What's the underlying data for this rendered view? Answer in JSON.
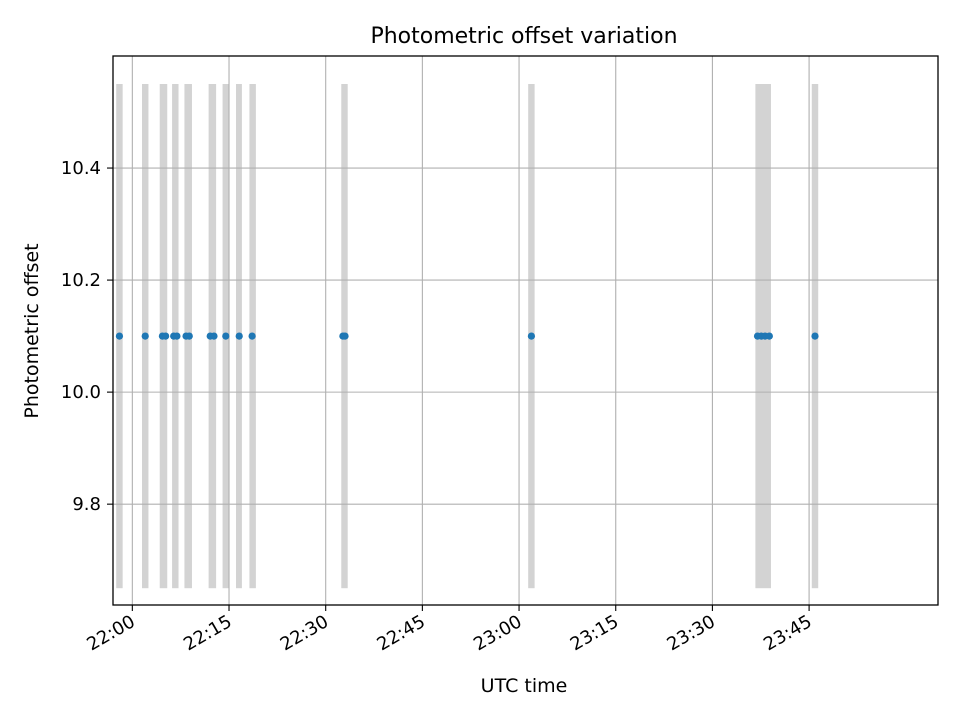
{
  "chart_data": {
    "type": "scatter",
    "title": "Photometric offset variation",
    "xlabel": "UTC time",
    "ylabel": "Photometric offset",
    "xlim": [
      "21:57",
      "24:05"
    ],
    "ylim": [
      9.62,
      10.6
    ],
    "grid": true,
    "x_tick_labels": [
      "22:00",
      "22:15",
      "22:30",
      "22:45",
      "23:00",
      "23:15",
      "23:30",
      "23:45"
    ],
    "y_tick_labels": [
      "9.8",
      "10.0",
      "10.2",
      "10.4"
    ],
    "y_ticks": [
      9.8,
      10.0,
      10.2,
      10.4
    ],
    "exposure_band_range": [
      9.65,
      10.55
    ],
    "exposure_bands": [
      {
        "start": "21:57:30",
        "end": "21:58:30"
      },
      {
        "start": "22:01:30",
        "end": "22:02:30"
      },
      {
        "start": "22:04:15",
        "end": "22:05:25"
      },
      {
        "start": "22:06:10",
        "end": "22:07:10"
      },
      {
        "start": "22:08:05",
        "end": "22:09:15"
      },
      {
        "start": "22:11:50",
        "end": "22:13:00"
      },
      {
        "start": "22:14:00",
        "end": "22:15:00"
      },
      {
        "start": "22:16:05",
        "end": "22:17:00"
      },
      {
        "start": "22:18:10",
        "end": "22:19:10"
      },
      {
        "start": "22:32:25",
        "end": "22:33:25"
      },
      {
        "start": "23:01:25",
        "end": "23:02:25"
      },
      {
        "start": "23:36:40",
        "end": "23:39:05"
      },
      {
        "start": "23:45:25",
        "end": "23:46:25"
      }
    ],
    "series": [
      {
        "color": "#1f77b4",
        "points": [
          {
            "x": "21:58:00",
            "y": 10.1
          },
          {
            "x": "22:02:00",
            "y": 10.1
          },
          {
            "x": "22:04:40",
            "y": 10.1
          },
          {
            "x": "22:05:10",
            "y": 10.1
          },
          {
            "x": "22:06:25",
            "y": 10.1
          },
          {
            "x": "22:06:55",
            "y": 10.1
          },
          {
            "x": "22:08:20",
            "y": 10.1
          },
          {
            "x": "22:08:50",
            "y": 10.1
          },
          {
            "x": "22:12:05",
            "y": 10.1
          },
          {
            "x": "22:12:40",
            "y": 10.1
          },
          {
            "x": "22:14:30",
            "y": 10.1
          },
          {
            "x": "22:16:35",
            "y": 10.1
          },
          {
            "x": "22:18:35",
            "y": 10.1
          },
          {
            "x": "22:32:40",
            "y": 10.1
          },
          {
            "x": "22:33:00",
            "y": 10.1
          },
          {
            "x": "23:01:55",
            "y": 10.1
          },
          {
            "x": "23:37:00",
            "y": 10.1
          },
          {
            "x": "23:37:35",
            "y": 10.1
          },
          {
            "x": "23:38:10",
            "y": 10.1
          },
          {
            "x": "23:38:50",
            "y": 10.1
          },
          {
            "x": "23:45:55",
            "y": 10.1
          }
        ]
      }
    ],
    "colors": {
      "band": "#d3d3d3",
      "grid": "#b0b0b0",
      "point": "#1f77b4"
    }
  }
}
